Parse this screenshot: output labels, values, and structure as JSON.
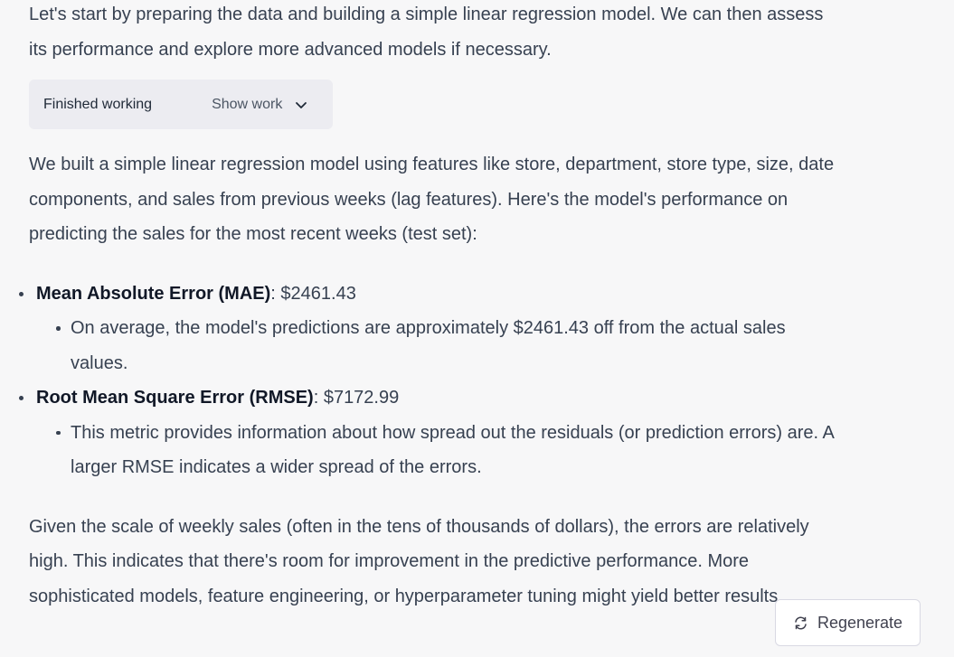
{
  "message": {
    "intro": "Let's start by preparing the data and building a simple linear regression model. We can then assess its performance and explore more advanced models if necessary.",
    "work_status": "Finished working",
    "show_work_label": "Show work",
    "results_text": "We built a simple linear regression model using features like store, department, store type, size, date components, and sales from previous weeks (lag features). Here's the model's performance on predicting the sales for the most recent weeks (test set):",
    "metrics": [
      {
        "name": "Mean Absolute Error (MAE)",
        "value": ": $2461.43",
        "detail": "On average, the model's predictions are approximately $2461.43 off from the actual sales values."
      },
      {
        "name": "Root Mean Square Error (RMSE)",
        "value": ": $7172.99",
        "detail": "This metric provides information about how spread out the residuals (or prediction errors) are. A larger RMSE indicates a wider spread of the errors."
      }
    ],
    "summary": "Given the scale of weekly sales (often in the tens of thousands of dollars), the errors are relatively high. This indicates that there's room for improvement in the predictive performance. More sophisticated models, feature engineering, or hyperparameter tuning might yield better results."
  },
  "actions": {
    "regenerate_label": "Regenerate",
    "regenerate_icon": "refresh-icon",
    "show_work_icon": "chevron-down-icon"
  }
}
